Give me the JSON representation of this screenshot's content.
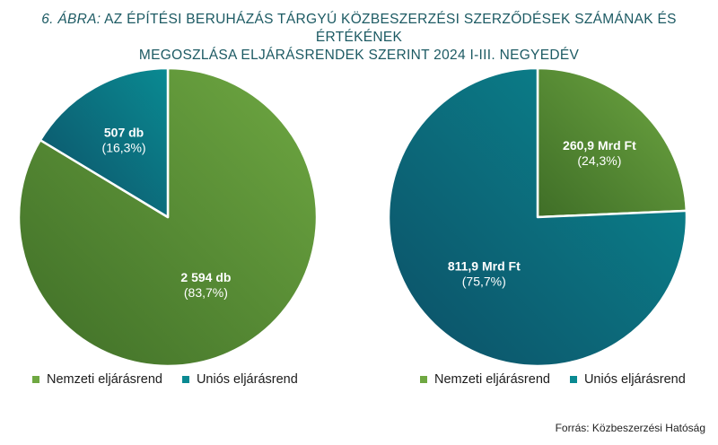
{
  "title": {
    "prefix": "6. ÁBRA:",
    "line1": "AZ ÉPÍTÉSI BERUHÁZÁS TÁRGYÚ KÖZBESZERZÉSI SZERZŐDÉSEK SZÁMÁNAK ÉS ÉRTÉKÉNEK",
    "line2": "MEGOSZLÁSA ELJÁRÁSRENDEK SZERINT 2024 I-III. NEGYEDÉV"
  },
  "colors": {
    "nemzeti": "#6fa842",
    "nemzeti_dark": "#3f6e27",
    "unios": "#0a8a92",
    "unios_dark": "#0d4f66",
    "title": "#1c5a63"
  },
  "chart_data": [
    {
      "type": "pie",
      "series": [
        {
          "name": "Nemzeti eljárásrend",
          "value": 2594,
          "label": "2 594 db",
          "percent": "(83,7%)"
        },
        {
          "name": "Uniós eljárásrend",
          "value": 507,
          "label": "507 db",
          "percent": "(16,3%)"
        }
      ],
      "legend": [
        "Nemzeti eljárásrend",
        "Uniós eljárásrend"
      ],
      "legend_position": "bottom"
    },
    {
      "type": "pie",
      "series": [
        {
          "name": "Nemzeti eljárásrend",
          "value": 260.9,
          "label": "260,9 Mrd Ft",
          "percent": "(24,3%)"
        },
        {
          "name": "Uniós eljárásrend",
          "value": 811.9,
          "label": "811,9 Mrd Ft",
          "percent": "(75,7%)"
        }
      ],
      "legend": [
        "Nemzeti eljárásrend",
        "Uniós eljárásrend"
      ],
      "legend_position": "bottom"
    }
  ],
  "source": "Forrás: Közbeszerzési Hatóság"
}
